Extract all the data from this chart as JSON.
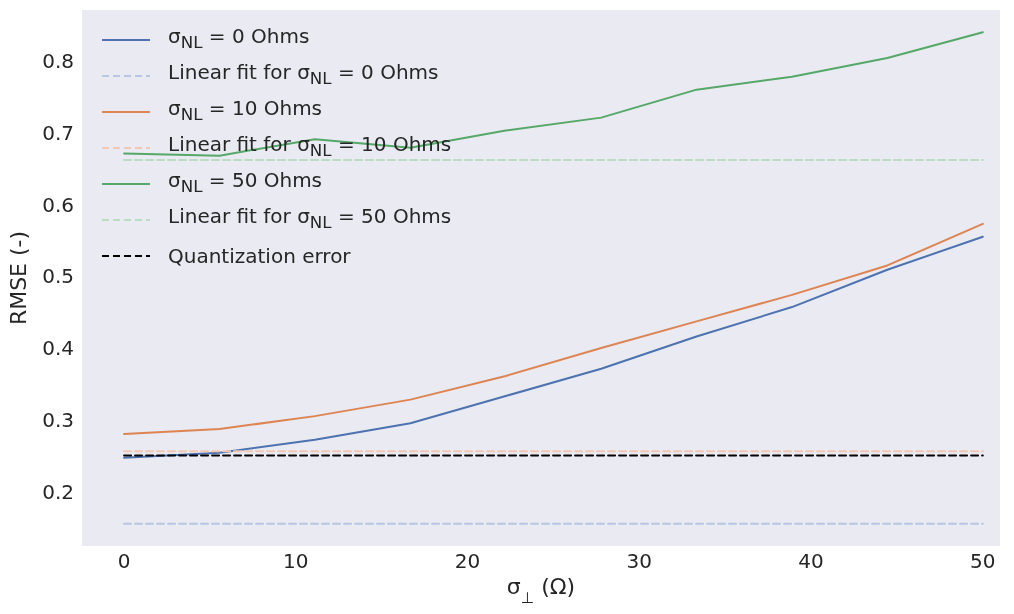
{
  "chart_data": {
    "type": "line",
    "xlabel": "σ$_{⊥}$ (Ω)",
    "ylabel": "RMSE (-)",
    "xlim": [
      -2.45,
      51
    ],
    "ylim": [
      0.124,
      0.871
    ],
    "xticks": [
      0,
      10,
      20,
      30,
      40,
      50
    ],
    "yticks": [
      0.2,
      0.3,
      0.4,
      0.5,
      0.6,
      0.7,
      0.8
    ],
    "legend": "top left",
    "series": [
      {
        "name": "σ$_{NL}$ = 0 Ohms",
        "color": "#4c72b0",
        "line_style": "solid",
        "x": [
          0,
          5.56,
          11.11,
          16.67,
          22.22,
          27.78,
          33.33,
          38.89,
          44.44,
          50
        ],
        "values": [
          0.247,
          0.254,
          0.272,
          0.295,
          0.333,
          0.371,
          0.416,
          0.457,
          0.509,
          0.555
        ]
      },
      {
        "name": "Linear fit for σ$_{NL}$ = 0 Ohms",
        "color": "#b7c6e2",
        "line_style": "dashed",
        "x": [
          0,
          50
        ],
        "values": [
          0.155,
          0.155
        ]
      },
      {
        "name": "σ$_{NL}$ = 10 Ohms",
        "color": "#dd8452",
        "line_style": "solid",
        "x": [
          0,
          5.56,
          11.11,
          16.67,
          22.22,
          27.78,
          33.33,
          38.89,
          44.44,
          50
        ],
        "values": [
          0.28,
          0.287,
          0.305,
          0.328,
          0.361,
          0.4,
          0.437,
          0.474,
          0.515,
          0.573
        ]
      },
      {
        "name": "Linear fit for σ$_{NL}$ = 10 Ohms",
        "color": "#f2c8b2",
        "line_style": "dashed",
        "x": [
          0,
          50
        ],
        "values": [
          0.256,
          0.256
        ]
      },
      {
        "name": "σ$_{NL}$ = 50 Ohms",
        "color": "#55a868",
        "line_style": "solid",
        "x": [
          0,
          5.56,
          11.11,
          16.67,
          22.22,
          27.78,
          33.33,
          38.89,
          44.44,
          50
        ],
        "values": [
          0.671,
          0.668,
          0.691,
          0.679,
          0.703,
          0.721,
          0.76,
          0.778,
          0.804,
          0.84
        ]
      },
      {
        "name": "Linear fit for σ$_{NL}$ = 50 Ohms",
        "color": "#b9dcc2",
        "line_style": "dashed",
        "x": [
          0,
          50
        ],
        "values": [
          0.662,
          0.662
        ]
      },
      {
        "name": "Quantization error",
        "color": "#000000",
        "line_style": "dashed",
        "x": [
          0,
          50
        ],
        "values": [
          0.25,
          0.25
        ]
      }
    ]
  }
}
